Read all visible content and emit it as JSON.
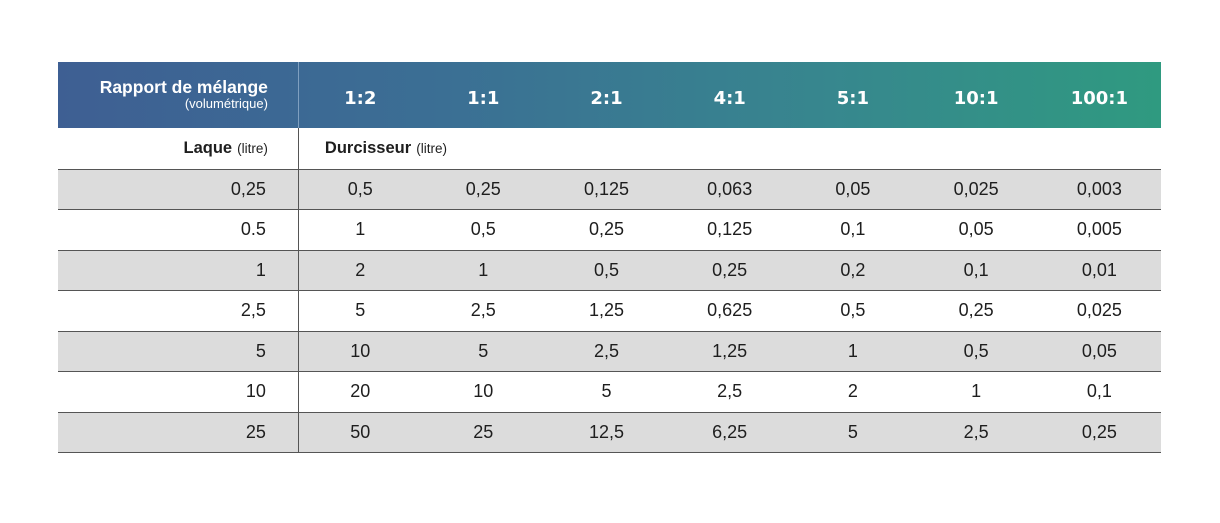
{
  "header": {
    "title": "Rapport de mélange",
    "subtitle": "(volumétrique)",
    "ratios": [
      "1:2",
      "1:1",
      "2:1",
      "4:1",
      "5:1",
      "10:1",
      "100:1"
    ]
  },
  "units_row": {
    "laque_name": "Laque",
    "laque_unit": "(litre)",
    "durcisseur_name": "Durcisseur",
    "durcisseur_unit": "(litre)"
  },
  "rows": [
    {
      "laque": "0,25",
      "values": [
        "0,5",
        "0,25",
        "0,125",
        "0,063",
        "0,05",
        "0,025",
        "0,003"
      ]
    },
    {
      "laque": "0.5",
      "values": [
        "1",
        "0,5",
        "0,25",
        "0,125",
        "0,1",
        "0,05",
        "0,005"
      ]
    },
    {
      "laque": "1",
      "values": [
        "2",
        "1",
        "0,5",
        "0,25",
        "0,2",
        "0,1",
        "0,01"
      ]
    },
    {
      "laque": "2,5",
      "values": [
        "5",
        "2,5",
        "1,25",
        "0,625",
        "0,5",
        "0,25",
        "0,025"
      ]
    },
    {
      "laque": "5",
      "values": [
        "10",
        "5",
        "2,5",
        "1,25",
        "1",
        "0,5",
        "0,05"
      ]
    },
    {
      "laque": "10",
      "values": [
        "20",
        "10",
        "5",
        "2,5",
        "2",
        "1",
        "0,1"
      ]
    },
    {
      "laque": "25",
      "values": [
        "50",
        "25",
        "12,5",
        "6,25",
        "5",
        "2,5",
        "0,25"
      ]
    }
  ],
  "colors": {
    "header_gradient_start": "#3e5f93",
    "header_gradient_end": "#2f9a80",
    "row_shade": "#dcdcdc"
  }
}
